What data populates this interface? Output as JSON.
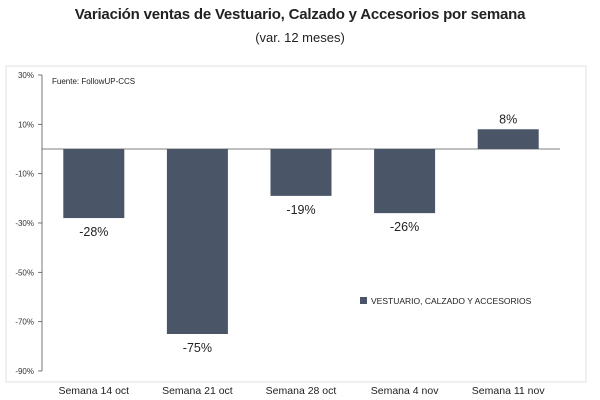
{
  "chart_data": {
    "type": "bar",
    "title": "Variación ventas de Vestuario, Calzado y Accesorios por semana",
    "subtitle": "(var. 12 meses)",
    "source": "Fuente: FollowUP-CCS",
    "categories": [
      "Semana 14 oct",
      "Semana 21 oct",
      "Semana 28 oct",
      "Semana 4 nov",
      "Semana 11 nov"
    ],
    "series": [
      {
        "name": "VESTUARIO, CALZADO Y ACCESORIOS",
        "values": [
          -28,
          -75,
          -19,
          -26,
          8
        ]
      }
    ],
    "data_labels": [
      "-28%",
      "-75%",
      "-19%",
      "-26%",
      "8%"
    ],
    "ylim": [
      -90,
      30
    ],
    "yticks": [
      30,
      10,
      -10,
      -30,
      -50,
      -70,
      -90
    ],
    "ytick_labels": [
      "30%",
      "10%",
      "-10%",
      "-30%",
      "-50%",
      "-70%",
      "-90%"
    ],
    "xlabel": "",
    "ylabel": "",
    "grid": false,
    "legend_position": "middle-right",
    "colors": {
      "bar": "#4a5568",
      "axis": "#555555",
      "border": "#cccccc"
    }
  }
}
